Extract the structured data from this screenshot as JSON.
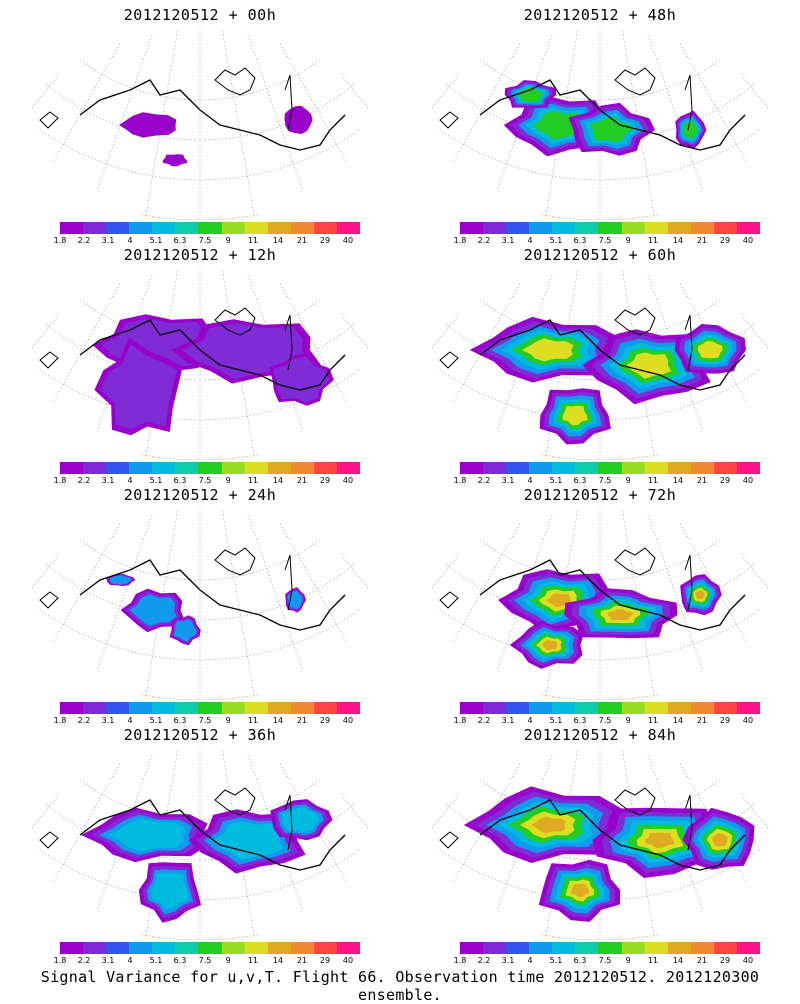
{
  "palette": [
    "#9900cc",
    "#7f2bd6",
    "#3355ee",
    "#1199ee",
    "#00bbdd",
    "#11ccaa",
    "#22cc22",
    "#99dd22",
    "#dddd22",
    "#ddaa22",
    "#ee8833",
    "#ff4444",
    "#ff1188"
  ],
  "colorbar": {
    "labels": [
      "1.8",
      "2.2",
      "3.1",
      "4",
      "5.1",
      "6.3",
      "7.5",
      "9",
      "11",
      "14",
      "21",
      "29",
      "40"
    ]
  },
  "panels": [
    {
      "title": "2012120512 + 00h",
      "intensity": 0
    },
    {
      "title": "2012120512 + 48h",
      "intensity": 4
    },
    {
      "title": "2012120512 + 12h",
      "intensity": 1
    },
    {
      "title": "2012120512 + 60h",
      "intensity": 5
    },
    {
      "title": "2012120512 + 24h",
      "intensity": 2
    },
    {
      "title": "2012120512 + 72h",
      "intensity": 6
    },
    {
      "title": "2012120512 + 36h",
      "intensity": 3
    },
    {
      "title": "2012120512 + 84h",
      "intensity": 7
    }
  ],
  "footer": "Signal Variance for u,v,T. Flight 66. Observation time 2012120512. 2012120300 ensemble."
}
